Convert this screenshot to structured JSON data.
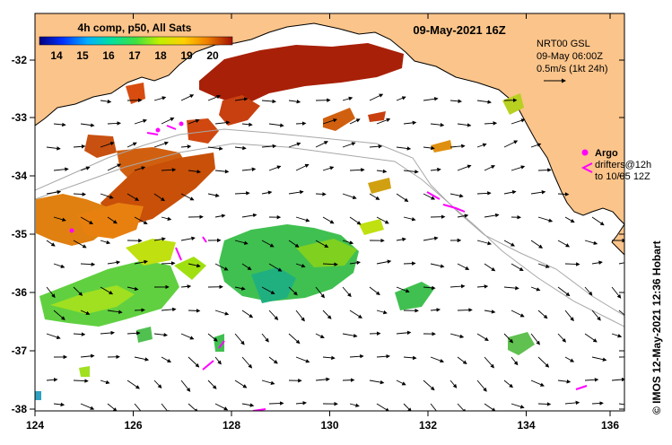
{
  "title": "09-May-2021 16Z",
  "colorbar": {
    "title": "4h comp, p50, All Sats",
    "ticks": [
      "14",
      "15",
      "16",
      "17",
      "18",
      "19",
      "20"
    ]
  },
  "info": {
    "line1": "NRT00 GSL",
    "line2": "09-May 06:00Z",
    "line3": "0.5m/s (1kt 24h)"
  },
  "legend": {
    "argo": "Argo",
    "drifters1": "drifters@12h",
    "drifters2": "to 10/05 12Z"
  },
  "credit": "© IMOS 12-May-2021 12:36 Hobart",
  "axes": {
    "x_ticks": [
      "124",
      "126",
      "128",
      "130",
      "132",
      "134",
      "136"
    ],
    "y_ticks": [
      "-32",
      "-33",
      "-34",
      "-35",
      "-36",
      "-37",
      "-38"
    ]
  },
  "colors": {
    "land": "#fbc48a",
    "warm": "#a82008",
    "drifter": "#ff00ff"
  }
}
